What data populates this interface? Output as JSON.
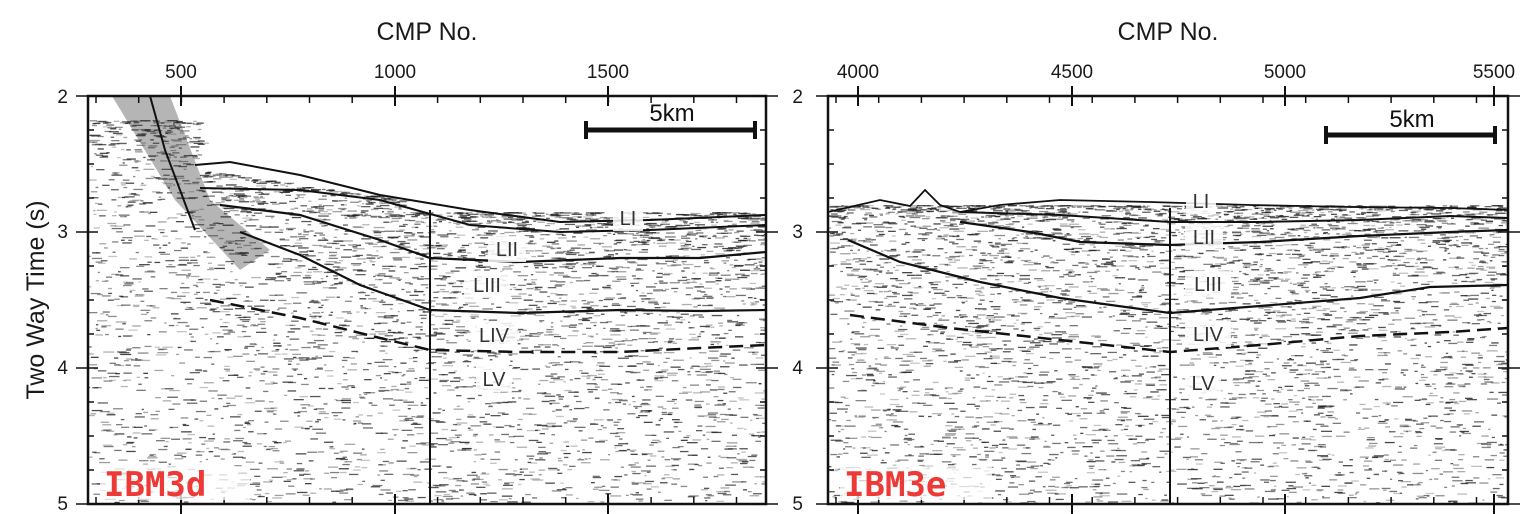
{
  "figure": {
    "y_axis_title": "Two Way Time (s)",
    "colors": {
      "panel_label": "#ee3a36",
      "ink": "#111111"
    }
  },
  "panels": [
    {
      "id": "IBM3d",
      "x_axis_title": "CMP No.",
      "x_ticks": [
        "500",
        "1000",
        "1500"
      ],
      "x_tick_values": [
        500,
        1000,
        1500
      ],
      "x_range": [
        280,
        1860
      ],
      "y_ticks": [
        "2",
        "3",
        "4",
        "5"
      ],
      "y_range": [
        2,
        5
      ],
      "scale_bar": "5km",
      "crossing_line_cmp": 1080,
      "units": [
        "LI",
        "LII",
        "LIII",
        "LIV",
        "LV"
      ]
    },
    {
      "id": "IBM3e",
      "x_axis_title": "CMP No.",
      "x_ticks": [
        "4000",
        "4500",
        "5000",
        "5500"
      ],
      "x_tick_values": [
        4000,
        4500,
        5000,
        5500
      ],
      "x_range": [
        3930,
        5515
      ],
      "y_ticks": [
        "2",
        "3",
        "4",
        "5"
      ],
      "y_range": [
        2,
        5
      ],
      "scale_bar": "5km",
      "crossing_line_cmp": 4730,
      "units": [
        "LI",
        "LII",
        "LIII",
        "LIV",
        "LV"
      ]
    }
  ]
}
